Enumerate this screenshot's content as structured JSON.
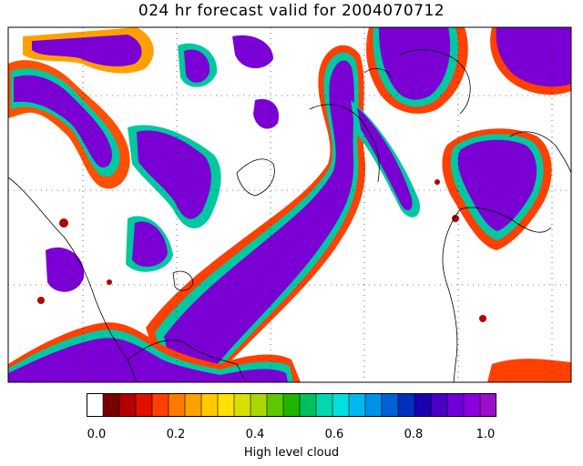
{
  "title": "024 hr forecast valid for 2004070712",
  "colorbar": {
    "label": "High level cloud",
    "ticks": [
      "0.0",
      "0.2",
      "0.4",
      "0.6",
      "0.8",
      "1.0"
    ],
    "range": [
      0.0,
      1.0
    ],
    "colors": [
      "#ffffff",
      "#7a0000",
      "#b40000",
      "#e01000",
      "#ff4000",
      "#ff7a00",
      "#ffa000",
      "#ffc800",
      "#ffe000",
      "#d8e000",
      "#a8d800",
      "#60c800",
      "#20b400",
      "#00c060",
      "#00d8b0",
      "#00e0e0",
      "#00b8f0",
      "#0090e8",
      "#0060d8",
      "#0030c0",
      "#1800b0",
      "#4a00c8",
      "#7000d8",
      "#8a00e0",
      "#9a10c8"
    ]
  }
}
